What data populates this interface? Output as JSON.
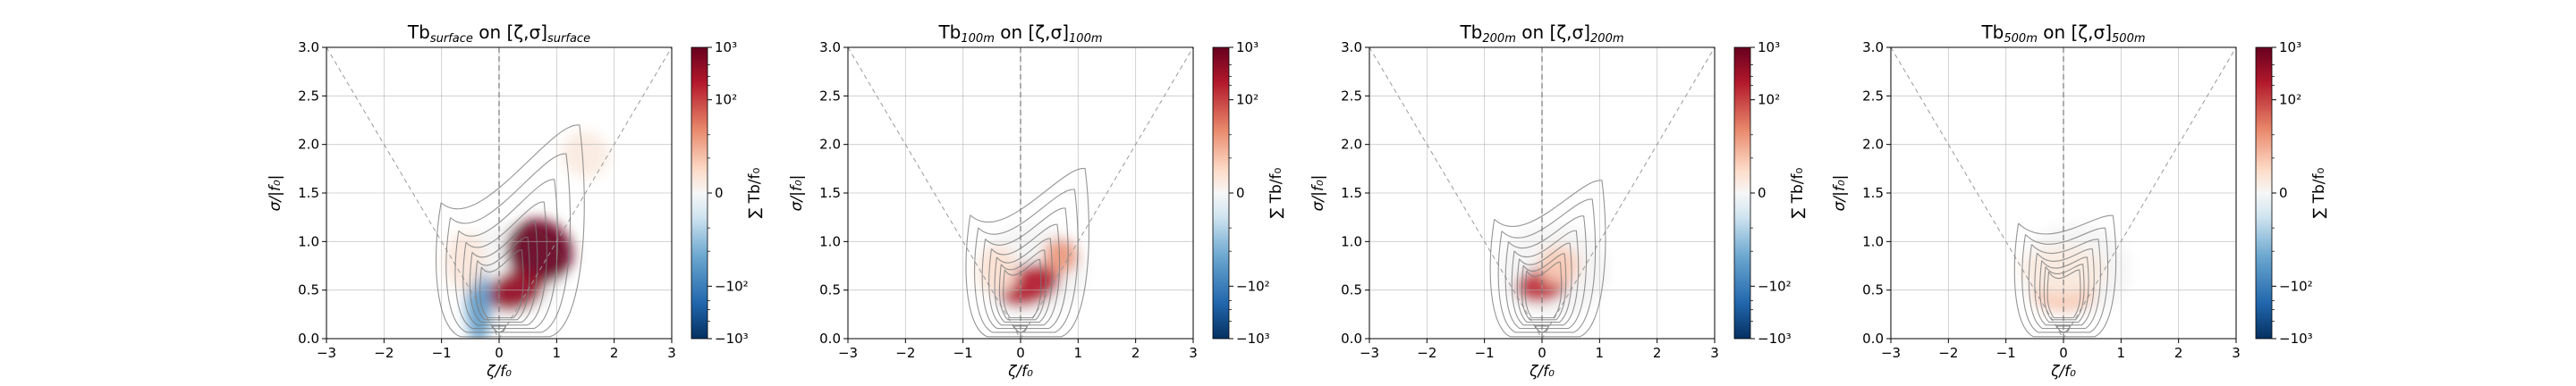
{
  "chart_data": [
    {
      "type": "heatmap",
      "title_main": "Tb",
      "title_sub": "surface",
      "title_mid": " on [ζ,σ]",
      "title_sub2": "surface",
      "xlabel": "ζ/f₀",
      "ylabel": "σ/|f₀|",
      "xlim": [
        -3,
        3
      ],
      "ylim": [
        0,
        3
      ],
      "xticks": [
        "−3",
        "−2",
        "−1",
        "0",
        "1",
        "2",
        "3"
      ],
      "yticks": [
        "0.0",
        "0.5",
        "1.0",
        "1.5",
        "2.0",
        "2.5",
        "3.0"
      ],
      "grid": true,
      "colorbar": {
        "label": "∑ Tb/f₀",
        "scale": "symlog",
        "range": [
          -1000,
          1000
        ],
        "ticks": [
          "10³",
          "10²",
          "0",
          "−10²",
          "−10³"
        ],
        "colormap": "RdBu_r"
      },
      "blobs": [
        {
          "x": 0.7,
          "y": 0.9,
          "sx": 0.55,
          "sy": 0.35,
          "rot": -58,
          "value": 1.0
        },
        {
          "x": 0.3,
          "y": 0.5,
          "sx": 0.5,
          "sy": 0.2,
          "rot": -20,
          "value": 0.85
        },
        {
          "x": -0.35,
          "y": 0.35,
          "sx": 0.22,
          "sy": 0.4,
          "rot": 0,
          "value": -0.55
        },
        {
          "x": -0.6,
          "y": 0.8,
          "sx": 0.35,
          "sy": 0.3,
          "rot": 0,
          "value": 0.15
        },
        {
          "x": 1.5,
          "y": 1.9,
          "sx": 0.4,
          "sy": 0.25,
          "rot": -50,
          "value": 0.12
        }
      ],
      "contour_scale": 1.0,
      "contour_tilt": 1.0
    },
    {
      "type": "heatmap",
      "title_main": "Tb",
      "title_sub": "100m",
      "title_mid": " on [ζ,σ]",
      "title_sub2": "100m",
      "xlabel": "ζ/f₀",
      "ylabel": "σ/|f₀|",
      "xlim": [
        -3,
        3
      ],
      "ylim": [
        0,
        3
      ],
      "xticks": [
        "−3",
        "−2",
        "−1",
        "0",
        "1",
        "2",
        "3"
      ],
      "yticks": [
        "0.0",
        "0.5",
        "1.0",
        "1.5",
        "2.0",
        "2.5",
        "3.0"
      ],
      "grid": true,
      "colorbar": {
        "label": "∑ Tb/f₀",
        "scale": "symlog",
        "range": [
          -1000,
          1000
        ],
        "ticks": [
          "10³",
          "10²",
          "0",
          "−10²",
          "−10³"
        ],
        "colormap": "RdBu_r"
      },
      "blobs": [
        {
          "x": 0.15,
          "y": 0.55,
          "sx": 0.55,
          "sy": 0.2,
          "rot": -20,
          "value": 0.75
        },
        {
          "x": 0.7,
          "y": 0.85,
          "sx": 0.3,
          "sy": 0.18,
          "rot": -45,
          "value": 0.45
        },
        {
          "x": -0.4,
          "y": 0.7,
          "sx": 0.35,
          "sy": 0.25,
          "rot": 0,
          "value": 0.2
        }
      ],
      "contour_scale": 0.85,
      "contour_tilt": 0.6
    },
    {
      "type": "heatmap",
      "title_main": "Tb",
      "title_sub": "200m",
      "title_mid": " on [ζ,σ]",
      "title_sub2": "200m",
      "xlabel": "ζ/f₀",
      "ylabel": "σ/|f₀|",
      "xlim": [
        -3,
        3
      ],
      "ylim": [
        0,
        3
      ],
      "xticks": [
        "−3",
        "−2",
        "−1",
        "0",
        "1",
        "2",
        "3"
      ],
      "yticks": [
        "0.0",
        "0.5",
        "1.0",
        "1.5",
        "2.0",
        "2.5",
        "3.0"
      ],
      "grid": true,
      "colorbar": {
        "label": "∑ Tb/f₀",
        "scale": "symlog",
        "range": [
          -1000,
          1000
        ],
        "ticks": [
          "10³",
          "10²",
          "0",
          "−10²",
          "−10³"
        ],
        "colormap": "RdBu_r"
      },
      "blobs": [
        {
          "x": 0.0,
          "y": 0.55,
          "sx": 0.45,
          "sy": 0.17,
          "rot": -10,
          "value": 0.7
        },
        {
          "x": 0.3,
          "y": 0.75,
          "sx": 0.35,
          "sy": 0.2,
          "rot": -20,
          "value": 0.3
        }
      ],
      "contour_scale": 0.8,
      "contour_tilt": 0.5
    },
    {
      "type": "heatmap",
      "title_main": "Tb",
      "title_sub": "500m",
      "title_mid": " on [ζ,σ]",
      "title_sub2": "500m",
      "xlabel": "ζ/f₀",
      "ylabel": "σ/|f₀|",
      "xlim": [
        -3,
        3
      ],
      "ylim": [
        0,
        3
      ],
      "xticks": [
        "−3",
        "−2",
        "−1",
        "0",
        "1",
        "2",
        "3"
      ],
      "yticks": [
        "0.0",
        "0.5",
        "1.0",
        "1.5",
        "2.0",
        "2.5",
        "3.0"
      ],
      "grid": true,
      "colorbar": {
        "label": "∑ Tb/f₀",
        "scale": "symlog",
        "range": [
          -1000,
          1000
        ],
        "ticks": [
          "10³",
          "10²",
          "0",
          "−10²",
          "−10³"
        ],
        "colormap": "RdBu_r"
      },
      "blobs": [
        {
          "x": 0.0,
          "y": 0.45,
          "sx": 0.55,
          "sy": 0.17,
          "rot": 0,
          "value": 0.3
        },
        {
          "x": 0.0,
          "y": 0.7,
          "sx": 0.75,
          "sy": 0.25,
          "rot": 0,
          "value": 0.12
        }
      ],
      "contour_scale": 0.75,
      "contour_tilt": 0.1
    }
  ]
}
